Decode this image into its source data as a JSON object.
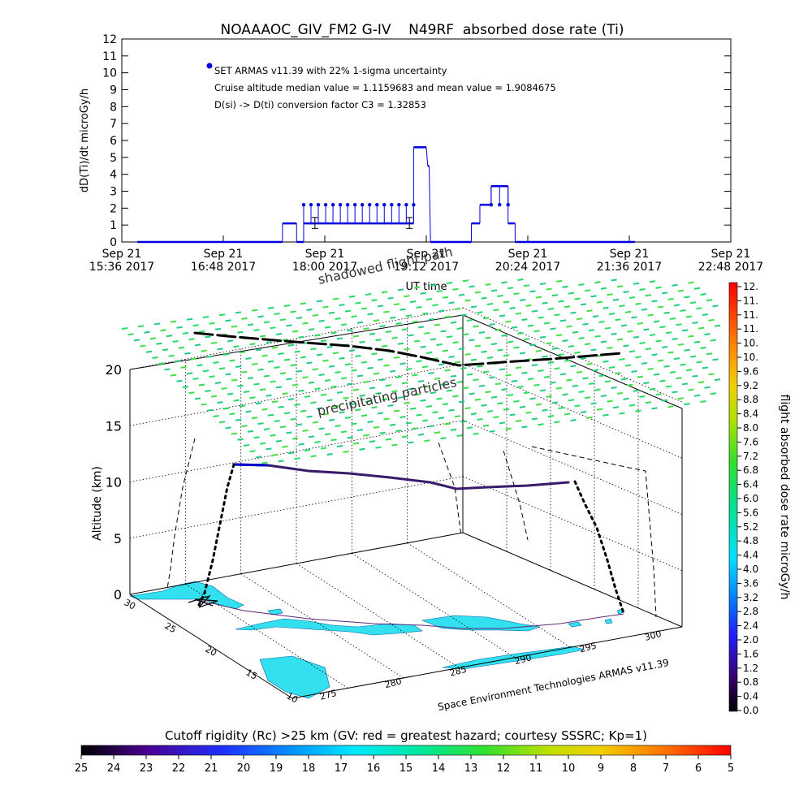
{
  "figure": {
    "title": "NOAAAOC_GIV_FM2 G-IV    N49RF  absorbed dose rate (Ti)",
    "credit": "Space Environment Technologies ARMAS v11.39",
    "colors": {
      "series": "#0000e0",
      "track": "#000000",
      "paths": "#000000"
    }
  },
  "chart_data": [
    {
      "type": "scatter",
      "title": "NOAAAOC_GIV_FM2 G-IV    N49RF  absorbed dose rate (Ti)",
      "xlabel": "UT time",
      "ylabel": "dD(Ti)/dt microGy/h",
      "ylim": [
        0,
        12
      ],
      "yticks": [
        "0",
        "1",
        "2",
        "3",
        "4",
        "5",
        "6",
        "7",
        "8",
        "9",
        "10",
        "11",
        "12"
      ],
      "xticks": [
        {
          "line1": "Sep 21",
          "line2": "15:36 2017"
        },
        {
          "line1": "Sep 21",
          "line2": "16:48 2017"
        },
        {
          "line1": "Sep 21",
          "line2": "18:00 2017"
        },
        {
          "line1": "Sep 21",
          "line2": "19:12 2017"
        },
        {
          "line1": "Sep 21",
          "line2": "20:24 2017"
        },
        {
          "line1": "Sep 21",
          "line2": "21:36 2017"
        },
        {
          "line1": "Sep 21",
          "line2": "22:48 2017"
        }
      ],
      "legend": {
        "placement": "top-left",
        "lines": [
          "SET ARMAS v11.39 with 22% 1-sigma uncertainty",
          "Cruise altitude median value = 1.1159683 and mean value = 1.9084675",
          "D(si) -> D(ti) conversion factor C3 = 1.32853"
        ]
      },
      "series": [
        {
          "name": "SET ARMAS v11.39 with 22% 1-sigma uncertainty",
          "color": "#0000e0",
          "segments": [
            {
              "x_range": [
                "15:47",
                "17:30"
              ],
              "y": 0
            },
            {
              "x_range": [
                "17:30",
                "17:40"
              ],
              "y": 1.1
            },
            {
              "x_range": [
                "17:40",
                "17:45"
              ],
              "y": 0
            },
            {
              "x_range": [
                "17:45",
                "19:03"
              ],
              "y": 1.1,
              "spikes_to": 2.2
            },
            {
              "x_range": [
                "19:03",
                "19:12"
              ],
              "y": 5.6
            },
            {
              "x_range": [
                "19:13",
                "19:14"
              ],
              "y": 4.5
            },
            {
              "x_range": [
                "19:15",
                "19:44"
              ],
              "y": 0
            },
            {
              "x_range": [
                "19:44",
                "19:50"
              ],
              "y": 1.1
            },
            {
              "x_range": [
                "19:50",
                "19:58"
              ],
              "y": 2.2
            },
            {
              "x_range": [
                "19:58",
                "20:10"
              ],
              "y": 3.3,
              "spikes_to": 2.2
            },
            {
              "x_range": [
                "20:10",
                "20:15"
              ],
              "y": 1.1
            },
            {
              "x_range": [
                "20:15",
                "21:40"
              ],
              "y": 0
            }
          ]
        }
      ]
    },
    {
      "type": "scatter",
      "title": "",
      "zlabel": "Altitude (km)",
      "zlim": [
        0,
        20
      ],
      "zticks": [
        "0",
        "5",
        "10",
        "15",
        "20"
      ],
      "lat_ticks": [
        "30",
        "25",
        "20",
        "15",
        "10"
      ],
      "lon_ticks": [
        "275",
        "280",
        "285",
        "290",
        "295",
        "300"
      ],
      "annotations": [
        "precipitating particles",
        "shadowed flight path"
      ],
      "flight_path": {
        "description_values": [
          {
            "leg": "climb",
            "altitude_km": [
              0,
              11.5
            ]
          },
          {
            "leg": "cruise",
            "altitude_km": [
              11.5,
              10.2
            ]
          },
          {
            "leg": "descent",
            "altitude_km": [
              10.2,
              0
            ]
          }
        ]
      },
      "colorbar": {
        "label": "flight absorbed dose rate microGy/h",
        "placement": "right",
        "ticks": [
          "0.0",
          "0.4",
          "0.8",
          "1.2",
          "1.6",
          "2.0",
          "2.4",
          "2.8",
          "3.2",
          "3.6",
          "4.0",
          "4.4",
          "4.8",
          "5.2",
          "5.6",
          "6.0",
          "6.4",
          "6.8",
          "7.2",
          "7.6",
          "8.0",
          "8.4",
          "8.8",
          "9.2",
          "9.6",
          "10.",
          "10.",
          "11.",
          "11.",
          "11.",
          "12."
        ]
      }
    },
    {
      "type": "heatmap",
      "title": "Cutoff rigidity (Rc) >25 km (GV: red = greatest hazard; courtesy SSSRC; Kp=1)",
      "colorbar_ticks": [
        "25",
        "24",
        "23",
        "22",
        "21",
        "20",
        "19",
        "18",
        "17",
        "16",
        "15",
        "14",
        "13",
        "12",
        "11",
        "10",
        "9",
        "8",
        "7",
        "6",
        "5"
      ],
      "placement": "bottom"
    }
  ]
}
